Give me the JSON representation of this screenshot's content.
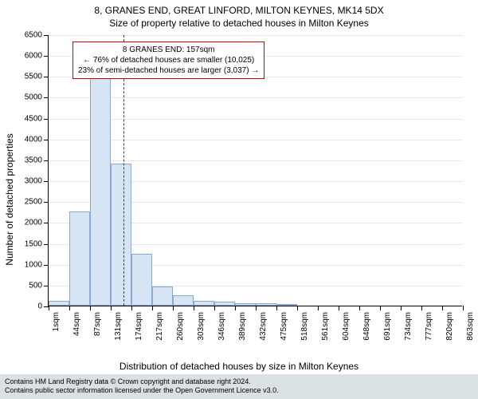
{
  "title_main": "8, GRANES END, GREAT LINFORD, MILTON KEYNES, MK14 5DX",
  "title_sub": "Size of property relative to detached houses in Milton Keynes",
  "ylabel": "Number of detached properties",
  "xlabel": "Distribution of detached houses by size in Milton Keynes",
  "chart": {
    "type": "histogram",
    "background": "#ffffff",
    "grid_color": "#e8e8e8",
    "axis_color": "#000000",
    "bar_fill": "#d7e4f4",
    "bar_stroke": "#88a8d0",
    "marker_color": "#cc0000",
    "ylim": [
      0,
      6500
    ],
    "ytick_step": 500,
    "xticks": [
      "1sqm",
      "44sqm",
      "87sqm",
      "131sqm",
      "174sqm",
      "217sqm",
      "260sqm",
      "303sqm",
      "346sqm",
      "389sqm",
      "432sqm",
      "475sqm",
      "518sqm",
      "561sqm",
      "604sqm",
      "648sqm",
      "691sqm",
      "734sqm",
      "777sqm",
      "820sqm",
      "863sqm"
    ],
    "bars": [
      120,
      2250,
      5550,
      3400,
      1250,
      450,
      250,
      120,
      90,
      60,
      50,
      40,
      0,
      0,
      0,
      0,
      0,
      0,
      0,
      0
    ],
    "marker_index": 3.6,
    "label_fontsize": 10
  },
  "annotation": {
    "line1": "8 GRANES END: 157sqm",
    "line2": "← 76% of detached houses are smaller (10,025)",
    "line3": "23% of semi-detached houses are larger (3,037) →"
  },
  "footer": {
    "line1": "Contains HM Land Registry data © Crown copyright and database right 2024.",
    "line2": "Contains public sector information licensed under the Open Government Licence v3.0."
  }
}
